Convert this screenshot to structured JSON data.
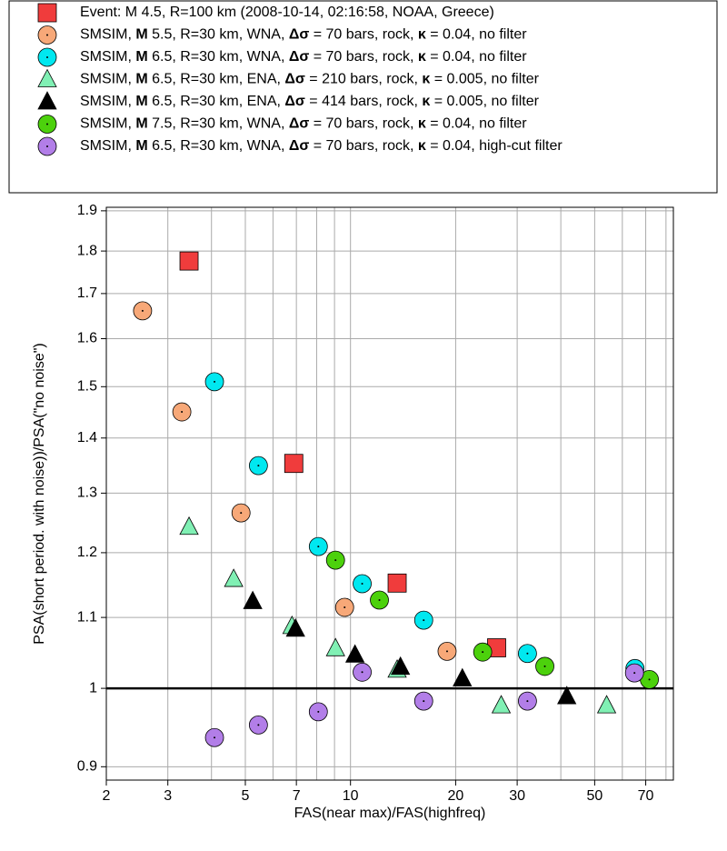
{
  "chart_data": {
    "type": "scatter",
    "x_label": "FAS(near max)/FAS(highfreq)",
    "y_label": "PSA(short period. with noise))/PSA(\"no noise\")",
    "xlog": true,
    "ylog": true,
    "grid": true,
    "xlim": [
      2,
      84
    ],
    "ylim": [
      0.884,
      1.909
    ],
    "xticks": [
      2,
      3,
      5,
      7,
      10,
      20,
      30,
      50,
      70
    ],
    "xgrid": [
      4,
      6,
      8,
      9,
      40,
      60,
      80
    ],
    "yticks": [
      0.9,
      1,
      1.1,
      1.2,
      1.3,
      1.4,
      1.5,
      1.6,
      1.7,
      1.8,
      1.9
    ],
    "reference_line": 1,
    "series": [
      {
        "name": "Event: M 4.5, R=100 km (2008-10-14, 02:16:58, NOAA, Greece)",
        "color": "#f03c3c",
        "marker": "square",
        "x": [
          3.45,
          6.88,
          13.6,
          26.2
        ],
        "values": [
          1.776,
          1.353,
          1.152,
          1.056
        ]
      },
      {
        "name": "SMSIM, M 5.5, R=30 km, WNA, Δσ = 70 bars, rock, κ = 0.04, no filter",
        "color": "#f7a878",
        "marker": "circle",
        "x": [
          2.54,
          3.29,
          4.86,
          9.62,
          18.9
        ],
        "values": [
          1.661,
          1.45,
          1.266,
          1.115,
          1.051
        ]
      },
      {
        "name": "SMSIM, M 6.5, R=30 km, WNA, Δσ = 70 bars, rock, κ = 0.04, no filter",
        "color": "#00e8f0",
        "marker": "circle",
        "x": [
          4.08,
          5.45,
          8.09,
          10.8,
          16.2,
          32.1,
          65.2
        ],
        "values": [
          1.51,
          1.349,
          1.21,
          1.151,
          1.096,
          1.048,
          1.027
        ]
      },
      {
        "name": "SMSIM, M 6.5, R=30 km, ENA, Δσ = 210 bars, rock, κ = 0.005, no filter",
        "color": "#80f0b4",
        "marker": "triangle",
        "x": [
          3.45,
          4.63,
          6.8,
          9.06,
          13.6,
          27.0,
          54.1
        ],
        "values": [
          1.242,
          1.158,
          1.087,
          1.055,
          1.025,
          0.977,
          0.977
        ]
      },
      {
        "name": "SMSIM, M 6.5, R=30 km, ENA, Δσ = 414 bars, rock, κ = 0.005, no filter",
        "color": "#000000",
        "marker": "triangle",
        "x": [
          5.25,
          6.96,
          10.3,
          13.9,
          20.9,
          41.6
        ],
        "values": [
          1.124,
          1.083,
          1.046,
          1.029,
          1.013,
          0.989
        ]
      },
      {
        "name": "SMSIM, M 7.5, R=30 km, WNA, Δσ = 70 bars, rock, κ = 0.04, no filter",
        "color": "#4cd10c",
        "marker": "circle",
        "x": [
          9.06,
          12.1,
          23.9,
          36.0,
          71.7
        ],
        "values": [
          1.188,
          1.126,
          1.05,
          1.03,
          1.012
        ]
      },
      {
        "name": "SMSIM, M 6.5, R=30 km, WNA, Δσ = 70 bars, rock, κ = 0.04, high-cut filter",
        "color": "#b27ee8",
        "marker": "circle",
        "x": [
          4.08,
          5.45,
          8.09,
          10.8,
          16.2,
          32.1,
          65.0
        ],
        "values": [
          0.936,
          0.952,
          0.969,
          1.022,
          0.983,
          0.983,
          1.021
        ]
      }
    ]
  }
}
